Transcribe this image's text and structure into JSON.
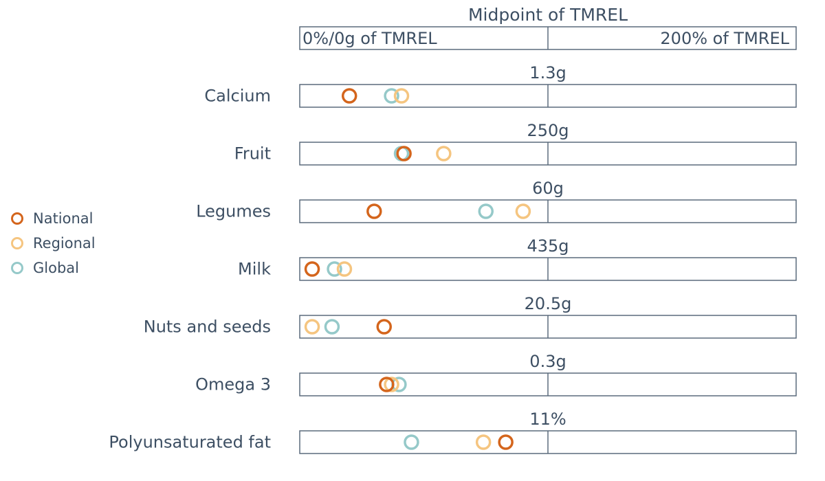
{
  "chart_data": {
    "type": "scatter",
    "title": "Midpoint of TMREL",
    "scale_left_label": "0%/0g of TMREL",
    "scale_right_label": "200% of TMREL",
    "x_unit": "percent of TMREL",
    "xlim": [
      0,
      200
    ],
    "legend_position": "left",
    "series": [
      {
        "name": "National",
        "color": "#d4651c"
      },
      {
        "name": "Regional",
        "color": "#f5c580"
      },
      {
        "name": "Global",
        "color": "#95c9c9"
      }
    ],
    "categories": [
      {
        "label": "Calcium",
        "tmrel": "1.3g",
        "values": {
          "National": 20,
          "Regional": 41,
          "Global": 37
        }
      },
      {
        "label": "Fruit",
        "tmrel": "250g",
        "values": {
          "National": 42,
          "Regional": 58,
          "Global": 41
        }
      },
      {
        "label": "Legumes",
        "tmrel": "60g",
        "values": {
          "National": 30,
          "Regional": 90,
          "Global": 75
        }
      },
      {
        "label": "Milk",
        "tmrel": "435g",
        "values": {
          "National": 5,
          "Regional": 18,
          "Global": 14
        }
      },
      {
        "label": "Nuts and seeds",
        "tmrel": "20.5g",
        "values": {
          "National": 34,
          "Regional": 5,
          "Global": 13
        }
      },
      {
        "label": "Omega 3",
        "tmrel": "0.3g",
        "values": {
          "National": 35,
          "Regional": 37,
          "Global": 40
        }
      },
      {
        "label": "Polyunsaturated fat",
        "tmrel": "11%",
        "values": {
          "National": 83,
          "Regional": 74,
          "Global": 45
        }
      }
    ]
  }
}
